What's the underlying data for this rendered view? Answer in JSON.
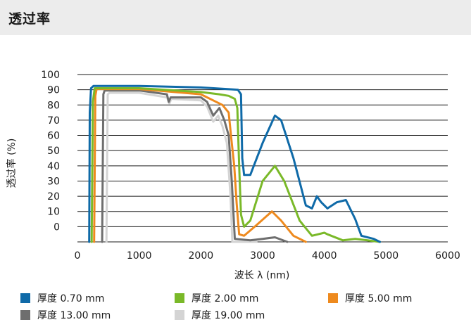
{
  "header": {
    "title": "透过率"
  },
  "chart_data": {
    "type": "line",
    "title": "",
    "xlabel": "波长 λ (nm)",
    "ylabel": "透过率 (%)",
    "xlim": [
      0,
      6000
    ],
    "ylim": [
      -10,
      100
    ],
    "x_ticks": [
      0,
      1000,
      2000,
      3000,
      4000,
      5000,
      6000
    ],
    "y_ticks": [
      100,
      90,
      80,
      70,
      60,
      50,
      40,
      30,
      20,
      10,
      0
    ],
    "y_tick_labels": [
      "100",
      "90",
      "80",
      "70",
      "60",
      "50",
      "40",
      "30",
      "20",
      "10",
      "0"
    ],
    "grid": "horizontal",
    "legend_position": "bottom",
    "series": [
      {
        "name": "厚度 0.70 mm",
        "color": "#0f6aa8",
        "points": [
          [
            190,
            -10
          ],
          [
            200,
            75
          ],
          [
            220,
            91
          ],
          [
            260,
            92.5
          ],
          [
            1000,
            92.5
          ],
          [
            2000,
            91.5
          ],
          [
            2600,
            90
          ],
          [
            2650,
            87
          ],
          [
            2670,
            45
          ],
          [
            2700,
            34
          ],
          [
            2800,
            34
          ],
          [
            3000,
            55
          ],
          [
            3200,
            73
          ],
          [
            3300,
            70
          ],
          [
            3500,
            45
          ],
          [
            3700,
            14
          ],
          [
            3800,
            12
          ],
          [
            3880,
            20
          ],
          [
            3950,
            16
          ],
          [
            4050,
            12
          ],
          [
            4200,
            16
          ],
          [
            4350,
            17.5
          ],
          [
            4500,
            5
          ],
          [
            4600,
            -6
          ],
          [
            4800,
            -8
          ],
          [
            4900,
            -10
          ]
        ]
      },
      {
        "name": "厚度 2.00 mm",
        "color": "#7ab929",
        "points": [
          [
            230,
            -10
          ],
          [
            250,
            82
          ],
          [
            280,
            91
          ],
          [
            1000,
            91
          ],
          [
            2000,
            88.5
          ],
          [
            2300,
            87
          ],
          [
            2450,
            86
          ],
          [
            2550,
            84
          ],
          [
            2590,
            78
          ],
          [
            2620,
            40
          ],
          [
            2650,
            8
          ],
          [
            2700,
            0
          ],
          [
            2800,
            4
          ],
          [
            3000,
            30
          ],
          [
            3200,
            40
          ],
          [
            3350,
            30
          ],
          [
            3600,
            4
          ],
          [
            3800,
            -6
          ],
          [
            4000,
            -4
          ],
          [
            4050,
            -5
          ],
          [
            4300,
            -9
          ],
          [
            4500,
            -8
          ],
          [
            4700,
            -9
          ],
          [
            4900,
            -10
          ]
        ]
      },
      {
        "name": "厚度 5.00 mm",
        "color": "#ee8a1e",
        "points": [
          [
            270,
            -10
          ],
          [
            290,
            86
          ],
          [
            310,
            90.5
          ],
          [
            1000,
            90.5
          ],
          [
            2000,
            87
          ],
          [
            2200,
            83
          ],
          [
            2350,
            80
          ],
          [
            2450,
            75
          ],
          [
            2500,
            55
          ],
          [
            2540,
            40
          ],
          [
            2580,
            15
          ],
          [
            2620,
            -5
          ],
          [
            2700,
            -6
          ],
          [
            2900,
            1
          ],
          [
            3150,
            10
          ],
          [
            3300,
            4
          ],
          [
            3500,
            -6
          ],
          [
            3700,
            -10
          ]
        ]
      },
      {
        "name": "厚度 13.00 mm",
        "color": "#6e6e6e",
        "points": [
          [
            400,
            -10
          ],
          [
            420,
            87
          ],
          [
            440,
            89.5
          ],
          [
            1000,
            89.5
          ],
          [
            1450,
            87
          ],
          [
            1480,
            82
          ],
          [
            1510,
            85
          ],
          [
            2000,
            85
          ],
          [
            2100,
            82
          ],
          [
            2200,
            73
          ],
          [
            2300,
            78
          ],
          [
            2380,
            70
          ],
          [
            2450,
            60
          ],
          [
            2500,
            30
          ],
          [
            2550,
            -8
          ],
          [
            2800,
            -9
          ],
          [
            3000,
            -8
          ],
          [
            3200,
            -7
          ],
          [
            3400,
            -10
          ]
        ]
      },
      {
        "name": "厚度 19.00 mm",
        "color": "#d4d4d4",
        "points": [
          [
            470,
            -10
          ],
          [
            490,
            87
          ],
          [
            520,
            88
          ],
          [
            1000,
            88
          ],
          [
            1450,
            85
          ],
          [
            1490,
            81
          ],
          [
            1520,
            84
          ],
          [
            2000,
            83
          ],
          [
            2100,
            79
          ],
          [
            2200,
            69
          ],
          [
            2280,
            73
          ],
          [
            2350,
            66
          ],
          [
            2420,
            55
          ],
          [
            2480,
            20
          ],
          [
            2510,
            -10
          ],
          [
            2600,
            -10
          ],
          [
            2900,
            -10
          ]
        ]
      }
    ]
  }
}
